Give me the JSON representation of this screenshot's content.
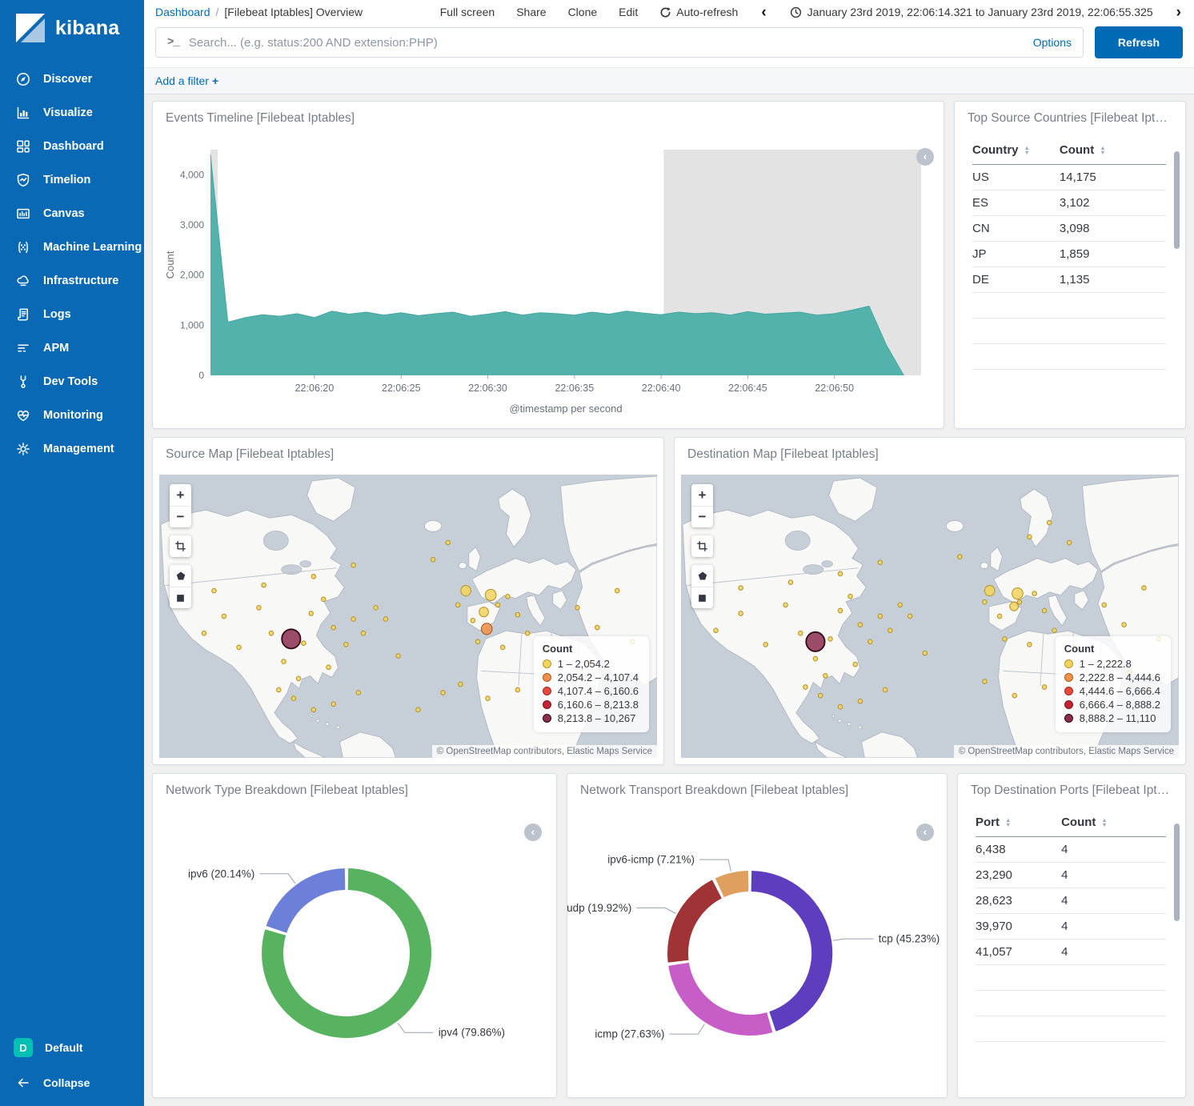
{
  "sidebar": {
    "logo_text": "kibana",
    "items": [
      {
        "label": "Discover",
        "icon": "compass-icon"
      },
      {
        "label": "Visualize",
        "icon": "bar-chart-icon"
      },
      {
        "label": "Dashboard",
        "icon": "grid-icon"
      },
      {
        "label": "Timelion",
        "icon": "shield-chart-icon"
      },
      {
        "label": "Canvas",
        "icon": "frame-icon"
      },
      {
        "label": "Machine Learning",
        "icon": "nodes-icon"
      },
      {
        "label": "Infrastructure",
        "icon": "cloud-icon"
      },
      {
        "label": "Logs",
        "icon": "scroll-icon"
      },
      {
        "label": "APM",
        "icon": "lines-icon"
      },
      {
        "label": "Dev Tools",
        "icon": "wrench-icon"
      },
      {
        "label": "Monitoring",
        "icon": "heartbeat-icon"
      },
      {
        "label": "Management",
        "icon": "gear-icon"
      }
    ],
    "bottom_default": {
      "label": "Default",
      "badge": "D",
      "badge_color": "#00BFB3"
    },
    "bottom_collapse": {
      "label": "Collapse",
      "icon": "arrow-left-icon"
    }
  },
  "topbar": {
    "breadcrumb": {
      "root": "Dashboard",
      "separator": "/",
      "current": "[Filebeat Iptables] Overview"
    },
    "menu": [
      "Full screen",
      "Share",
      "Clone",
      "Edit"
    ],
    "auto_refresh_label": "Auto-refresh",
    "time_range": "January 23rd 2019, 22:06:14.321 to January 23rd 2019, 22:06:55.325"
  },
  "query_bar": {
    "placeholder": "Search... (e.g. status:200 AND extension:PHP)",
    "options_label": "Options",
    "refresh_label": "Refresh"
  },
  "filter_bar": {
    "add_filter_label": "Add a filter",
    "plus": "+"
  },
  "colors": {
    "sidebar_bg": "#0A69B5",
    "link_blue": "#006BB4",
    "area_teal": "#54B2AC",
    "partial_bucket_gray": "#E3E3E3",
    "badge_teal": "#00BFB3"
  },
  "panels": {
    "events_timeline": {
      "title": "Events Timeline [Filebeat Iptables]"
    },
    "top_source_countries": {
      "title": "Top Source Countries [Filebeat Iptab...]",
      "columns": [
        "Country",
        "Count"
      ],
      "rows": [
        [
          "US",
          "14,175"
        ],
        [
          "ES",
          "3,102"
        ],
        [
          "CN",
          "3,098"
        ],
        [
          "JP",
          "1,859"
        ],
        [
          "DE",
          "1,135"
        ]
      ]
    },
    "source_map": {
      "title": "Source Map [Filebeat Iptables]"
    },
    "destination_map": {
      "title": "Destination Map [Filebeat Iptables]"
    },
    "network_type": {
      "title": "Network Type Breakdown [Filebeat Iptables]"
    },
    "network_transport": {
      "title": "Network Transport Breakdown [Filebeat Iptables]"
    },
    "top_destination_ports": {
      "title": "Top Destination Ports [Filebeat Ipta...]",
      "columns": [
        "Port",
        "Count"
      ],
      "rows": [
        [
          "6,438",
          "4"
        ],
        [
          "23,290",
          "4"
        ],
        [
          "28,623",
          "4"
        ],
        [
          "39,970",
          "4"
        ],
        [
          "41,057",
          "4"
        ]
      ]
    }
  },
  "chart_data": [
    {
      "id": "events-timeline",
      "type": "area",
      "title": "Events Timeline [Filebeat Iptables]",
      "xlabel": "@timestamp per second",
      "ylabel": "Count",
      "ylim": [
        0,
        4500
      ],
      "yticks": [
        0,
        1000,
        2000,
        3000,
        4000
      ],
      "x_range": [
        "22:06:14",
        "22:06:55"
      ],
      "x_tick_labels": [
        "22:06:20",
        "22:06:25",
        "22:06:30",
        "22:06:35",
        "22:06:40",
        "22:06:45",
        "22:06:50"
      ],
      "x_tick_seconds": [
        20,
        25,
        30,
        35,
        40,
        45,
        50
      ],
      "series": [
        {
          "name": "Count",
          "start_second": 14,
          "values": [
            4400,
            1060,
            1150,
            1210,
            1180,
            1230,
            1150,
            1280,
            1220,
            1260,
            1200,
            1250,
            1190,
            1230,
            1260,
            1180,
            1220,
            1270,
            1200,
            1250,
            1230,
            1200,
            1260,
            1220,
            1280,
            1240,
            1210,
            1260,
            1230,
            1250,
            1200,
            1270,
            1220,
            1240,
            1260,
            1200,
            1230,
            1300,
            1380,
            600,
            0
          ]
        }
      ],
      "color": "#54B2AC",
      "partial_bucket_color": "#E3E3E3",
      "grid": false
    },
    {
      "id": "network-type",
      "type": "pie",
      "donut": true,
      "title": "Network Type Breakdown [Filebeat Iptables]",
      "slices": [
        {
          "label": "ipv4",
          "pct": 79.86,
          "color": "#57B35F"
        },
        {
          "label": "ipv6",
          "pct": 20.14,
          "color": "#6C80D9"
        }
      ]
    },
    {
      "id": "network-transport",
      "type": "pie",
      "donut": true,
      "title": "Network Transport Breakdown [Filebeat Iptables]",
      "slices": [
        {
          "label": "tcp",
          "pct": 45.23,
          "color": "#5E3EBF"
        },
        {
          "label": "icmp",
          "pct": 27.63,
          "color": "#C75DC7"
        },
        {
          "label": "udp",
          "pct": 19.92,
          "color": "#A03336"
        },
        {
          "label": "ipv6-icmp",
          "pct": 7.21,
          "color": "#DFA05F"
        }
      ]
    },
    {
      "id": "source-map",
      "type": "scatter",
      "title": "Source Map [Filebeat Iptables]",
      "legend_title": "Count",
      "legend": [
        "1 – 2,054.2",
        "2,054.2 – 4,107.4",
        "4,107.4 – 6,160.6",
        "6,160.6 – 8,213.8",
        "8,213.8 – 10,267"
      ],
      "tier_colors": [
        [
          "#F2D45C",
          "#B8962E"
        ],
        [
          "#F0914A",
          "#AD5A1E"
        ],
        [
          "#E5483D",
          "#A32A22"
        ],
        [
          "#C32433",
          "#7E1520"
        ],
        [
          "#8C2D50",
          "#2E0A18"
        ]
      ],
      "attribution": "© OpenStreetMap contributors, Elastic Maps Service",
      "dots": [
        [
          26.5,
          58,
          12,
          5
        ],
        [
          65.8,
          54.5,
          7,
          2
        ],
        [
          61.6,
          41,
          6.5,
          1
        ],
        [
          66.6,
          42.5,
          7,
          1
        ],
        [
          65.2,
          48.5,
          6,
          1
        ],
        [
          9,
          56
        ],
        [
          13,
          50
        ],
        [
          16,
          61
        ],
        [
          20,
          47
        ],
        [
          22.5,
          56
        ],
        [
          25,
          66
        ],
        [
          29,
          59.5
        ],
        [
          30.5,
          49
        ],
        [
          33,
          44
        ],
        [
          35,
          54
        ],
        [
          37.5,
          60
        ],
        [
          39,
          51
        ],
        [
          41,
          56
        ],
        [
          28,
          72
        ],
        [
          24,
          76
        ],
        [
          34,
          68
        ],
        [
          43.5,
          47
        ],
        [
          45.5,
          51
        ],
        [
          11,
          41
        ],
        [
          21,
          39
        ],
        [
          31,
          36
        ],
        [
          39,
          32
        ],
        [
          27,
          79
        ],
        [
          31,
          83
        ],
        [
          35,
          81
        ],
        [
          40,
          77
        ],
        [
          48,
          64
        ],
        [
          60,
          46
        ],
        [
          63,
          51.5
        ],
        [
          68,
          46
        ],
        [
          70,
          43
        ],
        [
          72,
          49.5
        ],
        [
          64,
          59
        ],
        [
          69,
          61
        ],
        [
          74,
          56
        ],
        [
          78,
          62
        ],
        [
          60.5,
          74
        ],
        [
          66,
          79
        ],
        [
          72,
          76
        ],
        [
          84,
          47
        ],
        [
          88,
          54
        ],
        [
          92,
          41
        ],
        [
          95,
          59
        ],
        [
          86,
          67
        ],
        [
          55,
          30
        ],
        [
          58,
          24
        ],
        [
          52,
          83
        ],
        [
          57,
          77
        ]
      ]
    },
    {
      "id": "destination-map",
      "type": "scatter",
      "title": "Destination Map [Filebeat Iptables]",
      "legend_title": "Count",
      "legend": [
        "1 – 2,222.8",
        "2,222.8 – 4,444.6",
        "4,444.6 – 6,666.4",
        "6,666.4 – 8,888.2",
        "8,888.2 – 11,110"
      ],
      "tier_colors": [
        [
          "#F2D45C",
          "#B8962E"
        ],
        [
          "#F0914A",
          "#AD5A1E"
        ],
        [
          "#E5483D",
          "#A32A22"
        ],
        [
          "#C32433",
          "#7E1520"
        ],
        [
          "#8C2D50",
          "#2E0A18"
        ]
      ],
      "attribution": "© OpenStreetMap contributors, Elastic Maps Service",
      "dots": [
        [
          27,
          59,
          12,
          5
        ],
        [
          62,
          41,
          6.5,
          1
        ],
        [
          67.6,
          42,
          7,
          1
        ],
        [
          66.9,
          46.5,
          5.5,
          1
        ],
        [
          7,
          55
        ],
        [
          12,
          49
        ],
        [
          17,
          60
        ],
        [
          21,
          46
        ],
        [
          24,
          56
        ],
        [
          27,
          65
        ],
        [
          30,
          58
        ],
        [
          32,
          48
        ],
        [
          34,
          43
        ],
        [
          36,
          53
        ],
        [
          38,
          59
        ],
        [
          40,
          50
        ],
        [
          42,
          55
        ],
        [
          29,
          71
        ],
        [
          25,
          75
        ],
        [
          35,
          67
        ],
        [
          44,
          46
        ],
        [
          46,
          50
        ],
        [
          12,
          40
        ],
        [
          22,
          38
        ],
        [
          32,
          35
        ],
        [
          40,
          31
        ],
        [
          28,
          78
        ],
        [
          32,
          82
        ],
        [
          36,
          80
        ],
        [
          41,
          76
        ],
        [
          49,
          63
        ],
        [
          61,
          45
        ],
        [
          64,
          50
        ],
        [
          68,
          45
        ],
        [
          71,
          42
        ],
        [
          73,
          48
        ],
        [
          65,
          58
        ],
        [
          70,
          60
        ],
        [
          75,
          55
        ],
        [
          79,
          61
        ],
        [
          61,
          73
        ],
        [
          67,
          78
        ],
        [
          73,
          75
        ],
        [
          85,
          46
        ],
        [
          89,
          53
        ],
        [
          93,
          40
        ],
        [
          96,
          58
        ],
        [
          87,
          66
        ],
        [
          70,
          22
        ],
        [
          74,
          17
        ],
        [
          78,
          24
        ],
        [
          56,
          29
        ],
        [
          90,
          70
        ],
        [
          94,
          76
        ]
      ]
    }
  ]
}
